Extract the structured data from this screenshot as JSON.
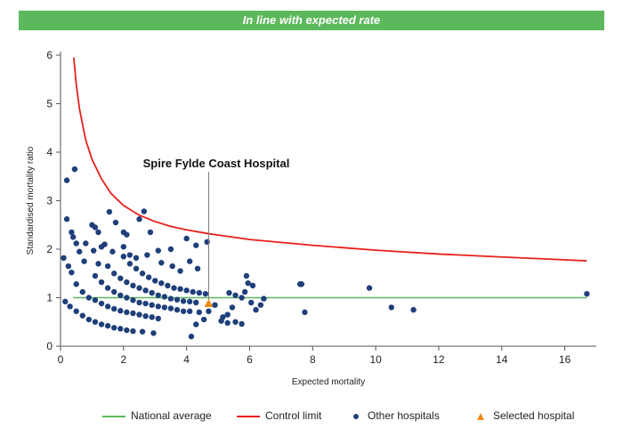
{
  "header": {
    "banner_text": "In line with expected rate"
  },
  "colors": {
    "banner": "#5cb85c",
    "national_average": "#5cb85c",
    "control_limit": "#e8201a",
    "other_hospitals": "#1f3f7a",
    "selected_hospital": "#f08a12",
    "axis": "#555555"
  },
  "chart_data": {
    "type": "scatter",
    "xlabel": "Expected mortality",
    "ylabel": "Standardised mortality ratio",
    "xlim": [
      0,
      17
    ],
    "ylim": [
      0,
      6
    ],
    "xticks": [
      "0",
      "2",
      "4",
      "6",
      "8",
      "10",
      "12",
      "14",
      "16"
    ],
    "yticks": [
      "0",
      "1",
      "2",
      "3",
      "4",
      "5",
      "6"
    ],
    "grid": false,
    "legend_position": "bottom",
    "annotation": "Spire Fylde Coast Hospital",
    "series": [
      {
        "name": "National average",
        "kind": "line",
        "points": [
          [
            0.4,
            1
          ],
          [
            16.7,
            1
          ]
        ]
      },
      {
        "name": "Control limit",
        "kind": "line",
        "points": [
          [
            0.42,
            5.95
          ],
          [
            0.5,
            5.4
          ],
          [
            0.6,
            4.9
          ],
          [
            0.8,
            4.25
          ],
          [
            1.0,
            3.85
          ],
          [
            1.3,
            3.45
          ],
          [
            1.6,
            3.15
          ],
          [
            2.0,
            2.9
          ],
          [
            2.5,
            2.7
          ],
          [
            3.0,
            2.57
          ],
          [
            3.5,
            2.47
          ],
          [
            4.0,
            2.4
          ],
          [
            4.7,
            2.32
          ],
          [
            6.0,
            2.2
          ],
          [
            8.0,
            2.08
          ],
          [
            10.0,
            1.98
          ],
          [
            12.0,
            1.9
          ],
          [
            14.0,
            1.84
          ],
          [
            16.7,
            1.76
          ]
        ]
      },
      {
        "name": "Other hospitals",
        "kind": "points",
        "points": [
          [
            0.2,
            3.42
          ],
          [
            0.45,
            3.65
          ],
          [
            0.2,
            2.62
          ],
          [
            0.35,
            2.35
          ],
          [
            0.4,
            2.25
          ],
          [
            0.5,
            2.12
          ],
          [
            0.6,
            1.95
          ],
          [
            0.8,
            2.12
          ],
          [
            1.0,
            2.5
          ],
          [
            1.1,
            2.45
          ],
          [
            1.2,
            2.35
          ],
          [
            1.4,
            2.1
          ],
          [
            1.55,
            2.77
          ],
          [
            1.75,
            2.55
          ],
          [
            2.0,
            2.35
          ],
          [
            2.1,
            2.3
          ],
          [
            2.5,
            2.62
          ],
          [
            2.65,
            2.78
          ],
          [
            2.85,
            2.35
          ],
          [
            3.1,
            1.97
          ],
          [
            3.5,
            2.0
          ],
          [
            4.0,
            2.22
          ],
          [
            4.3,
            2.08
          ],
          [
            4.65,
            2.15
          ],
          [
            1.05,
            1.97
          ],
          [
            1.3,
            2.05
          ],
          [
            1.65,
            1.95
          ],
          [
            2.0,
            2.05
          ],
          [
            2.2,
            1.88
          ],
          [
            2.4,
            1.82
          ],
          [
            2.75,
            1.88
          ],
          [
            3.2,
            1.72
          ],
          [
            3.55,
            1.65
          ],
          [
            3.8,
            1.55
          ],
          [
            4.1,
            1.75
          ],
          [
            4.35,
            1.6
          ],
          [
            0.1,
            1.82
          ],
          [
            0.25,
            1.65
          ],
          [
            0.35,
            1.52
          ],
          [
            0.75,
            1.75
          ],
          [
            1.2,
            1.7
          ],
          [
            0.15,
            0.92
          ],
          [
            0.3,
            0.82
          ],
          [
            0.5,
            0.72
          ],
          [
            0.7,
            0.63
          ],
          [
            0.9,
            0.55
          ],
          [
            1.1,
            0.5
          ],
          [
            1.3,
            0.45
          ],
          [
            1.5,
            0.42
          ],
          [
            1.7,
            0.38
          ],
          [
            1.9,
            0.36
          ],
          [
            2.1,
            0.33
          ],
          [
            2.3,
            0.31
          ],
          [
            2.6,
            0.3
          ],
          [
            2.95,
            0.27
          ],
          [
            0.5,
            1.28
          ],
          [
            0.7,
            1.12
          ],
          [
            0.9,
            1.0
          ],
          [
            1.1,
            0.95
          ],
          [
            1.3,
            0.88
          ],
          [
            1.5,
            0.82
          ],
          [
            1.7,
            0.77
          ],
          [
            1.9,
            0.73
          ],
          [
            2.1,
            0.7
          ],
          [
            2.3,
            0.68
          ],
          [
            2.5,
            0.65
          ],
          [
            2.7,
            0.62
          ],
          [
            2.9,
            0.6
          ],
          [
            3.1,
            0.57
          ],
          [
            1.1,
            1.45
          ],
          [
            1.3,
            1.32
          ],
          [
            1.5,
            1.2
          ],
          [
            1.7,
            1.12
          ],
          [
            1.9,
            1.05
          ],
          [
            2.1,
            1.0
          ],
          [
            2.3,
            0.95
          ],
          [
            2.5,
            0.9
          ],
          [
            2.7,
            0.88
          ],
          [
            2.9,
            0.85
          ],
          [
            3.1,
            0.82
          ],
          [
            3.3,
            0.8
          ],
          [
            3.5,
            0.78
          ],
          [
            3.7,
            0.75
          ],
          [
            3.9,
            0.72
          ],
          [
            4.1,
            0.72
          ],
          [
            4.4,
            0.7
          ],
          [
            1.5,
            1.65
          ],
          [
            1.7,
            1.5
          ],
          [
            1.9,
            1.4
          ],
          [
            2.1,
            1.32
          ],
          [
            2.3,
            1.25
          ],
          [
            2.5,
            1.2
          ],
          [
            2.7,
            1.15
          ],
          [
            2.9,
            1.1
          ],
          [
            3.1,
            1.05
          ],
          [
            3.3,
            1.02
          ],
          [
            3.5,
            0.98
          ],
          [
            3.7,
            0.96
          ],
          [
            3.9,
            0.93
          ],
          [
            4.1,
            0.92
          ],
          [
            4.3,
            0.9
          ],
          [
            2.0,
            1.85
          ],
          [
            2.2,
            1.7
          ],
          [
            2.4,
            1.6
          ],
          [
            2.6,
            1.5
          ],
          [
            2.8,
            1.42
          ],
          [
            3.0,
            1.35
          ],
          [
            3.2,
            1.3
          ],
          [
            3.4,
            1.25
          ],
          [
            3.6,
            1.2
          ],
          [
            3.8,
            1.18
          ],
          [
            4.0,
            1.15
          ],
          [
            4.2,
            1.12
          ],
          [
            4.4,
            1.1
          ],
          [
            4.6,
            1.08
          ],
          [
            4.15,
            0.2
          ],
          [
            4.3,
            0.45
          ],
          [
            4.55,
            0.55
          ],
          [
            4.7,
            0.72
          ],
          [
            4.9,
            0.85
          ],
          [
            5.1,
            0.52
          ],
          [
            5.3,
            0.48
          ],
          [
            5.15,
            0.6
          ],
          [
            5.55,
            0.5
          ],
          [
            5.75,
            0.46
          ],
          [
            5.3,
            0.65
          ],
          [
            5.35,
            1.1
          ],
          [
            5.55,
            1.05
          ],
          [
            5.75,
            1.0
          ],
          [
            5.85,
            1.12
          ],
          [
            5.9,
            1.45
          ],
          [
            5.95,
            1.3
          ],
          [
            6.1,
            1.25
          ],
          [
            6.2,
            0.75
          ],
          [
            6.35,
            0.85
          ],
          [
            6.45,
            0.98
          ],
          [
            6.05,
            0.9
          ],
          [
            5.45,
            0.8
          ],
          [
            7.6,
            1.28
          ],
          [
            7.65,
            1.28
          ],
          [
            7.75,
            0.7
          ],
          [
            9.8,
            1.2
          ],
          [
            10.5,
            0.8
          ],
          [
            11.2,
            0.75
          ],
          [
            16.7,
            1.08
          ]
        ]
      },
      {
        "name": "Selected hospital",
        "kind": "marker",
        "points": [
          [
            4.7,
            0.88
          ]
        ]
      }
    ]
  }
}
